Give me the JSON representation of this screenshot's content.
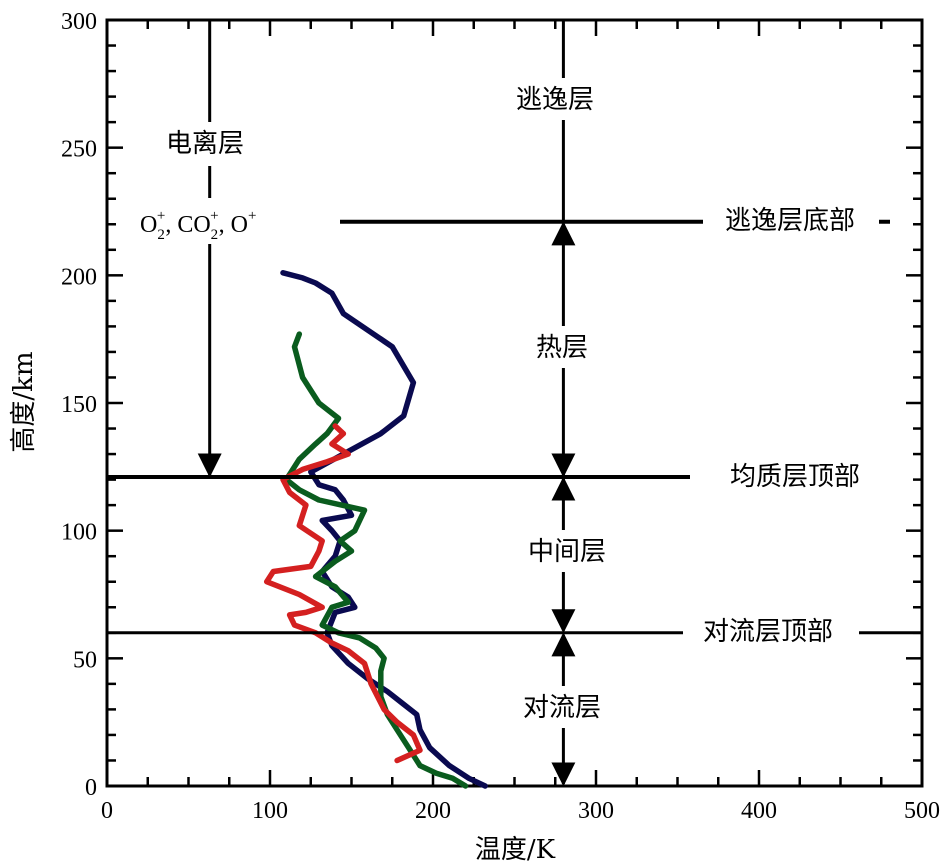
{
  "chart_data": {
    "type": "line",
    "xlabel": "温度/K",
    "ylabel": "高度/km",
    "xlim": [
      0,
      500
    ],
    "ylim": [
      0,
      300
    ],
    "x_ticks": [
      0,
      100,
      200,
      300,
      400,
      500
    ],
    "y_ticks": [
      0,
      50,
      100,
      150,
      200,
      250,
      300
    ],
    "grid": false,
    "series": [
      {
        "color": "#0a0a50",
        "points": [
          [
            232,
            0
          ],
          [
            222,
            3
          ],
          [
            210,
            8
          ],
          [
            198,
            15
          ],
          [
            192,
            22
          ],
          [
            190,
            28
          ],
          [
            182,
            32
          ],
          [
            172,
            37
          ],
          [
            160,
            42
          ],
          [
            148,
            48
          ],
          [
            138,
            55
          ],
          [
            135,
            60
          ],
          [
            140,
            68
          ],
          [
            152,
            70
          ],
          [
            148,
            74
          ],
          [
            138,
            78
          ],
          [
            132,
            84
          ],
          [
            140,
            90
          ],
          [
            143,
            96
          ],
          [
            138,
            100
          ],
          [
            132,
            104
          ],
          [
            150,
            106
          ],
          [
            145,
            112
          ],
          [
            140,
            116
          ],
          [
            130,
            118
          ],
          [
            125,
            123
          ],
          [
            145,
            130
          ],
          [
            168,
            138
          ],
          [
            182,
            145
          ],
          [
            188,
            158
          ],
          [
            175,
            172
          ],
          [
            145,
            185
          ],
          [
            138,
            193
          ],
          [
            128,
            197
          ],
          [
            120,
            199
          ],
          [
            108,
            201
          ]
        ]
      },
      {
        "color": "#0a5c1e",
        "points": [
          [
            220,
            0
          ],
          [
            212,
            3
          ],
          [
            202,
            5
          ],
          [
            192,
            8
          ],
          [
            185,
            15
          ],
          [
            178,
            22
          ],
          [
            172,
            28
          ],
          [
            168,
            35
          ],
          [
            168,
            45
          ],
          [
            170,
            50
          ],
          [
            165,
            54
          ],
          [
            155,
            58
          ],
          [
            142,
            60
          ],
          [
            132,
            63
          ],
          [
            138,
            70
          ],
          [
            148,
            72
          ],
          [
            140,
            78
          ],
          [
            128,
            82
          ],
          [
            140,
            88
          ],
          [
            150,
            92
          ],
          [
            143,
            96
          ],
          [
            152,
            100
          ],
          [
            158,
            108
          ],
          [
            130,
            112
          ],
          [
            118,
            116
          ],
          [
            110,
            120
          ],
          [
            118,
            128
          ],
          [
            128,
            134
          ],
          [
            135,
            138
          ],
          [
            142,
            144
          ],
          [
            130,
            150
          ],
          [
            120,
            160
          ],
          [
            115,
            172
          ],
          [
            118,
            177
          ]
        ]
      },
      {
        "color": "#d42020",
        "points": [
          [
            178,
            10
          ],
          [
            192,
            14
          ],
          [
            188,
            20
          ],
          [
            178,
            25
          ],
          [
            170,
            30
          ],
          [
            162,
            40
          ],
          [
            158,
            48
          ],
          [
            148,
            53
          ],
          [
            138,
            56
          ],
          [
            128,
            60
          ],
          [
            115,
            63
          ],
          [
            112,
            67
          ],
          [
            122,
            68
          ],
          [
            132,
            70
          ],
          [
            118,
            75
          ],
          [
            98,
            80
          ],
          [
            102,
            84
          ],
          [
            125,
            86
          ],
          [
            130,
            92
          ],
          [
            132,
            96
          ],
          [
            118,
            102
          ],
          [
            122,
            110
          ],
          [
            112,
            115
          ],
          [
            108,
            120
          ],
          [
            120,
            124
          ],
          [
            135,
            127
          ],
          [
            148,
            130
          ],
          [
            138,
            134
          ],
          [
            145,
            138
          ],
          [
            140,
            141
          ]
        ]
      }
    ],
    "annotations": {
      "ionosphere": "电离层",
      "ion_formula": {
        "o2": "O",
        "sub": "2",
        "plus": "+",
        "co2": "CO",
        "o": "O",
        "comma": ","
      },
      "exosphere": "逃逸层",
      "exobase": "逃逸层底部",
      "thermosphere": "热层",
      "homopause": "均质层顶部",
      "mesosphere": "中间层",
      "tropopause": "对流层顶部",
      "troposphere": "对流层"
    },
    "levels": {
      "exobase_km": 221,
      "homopause_km": 121,
      "tropopause_km": 60,
      "ionosphere_arrow_x": 63,
      "right_arrow_x": 280
    }
  }
}
